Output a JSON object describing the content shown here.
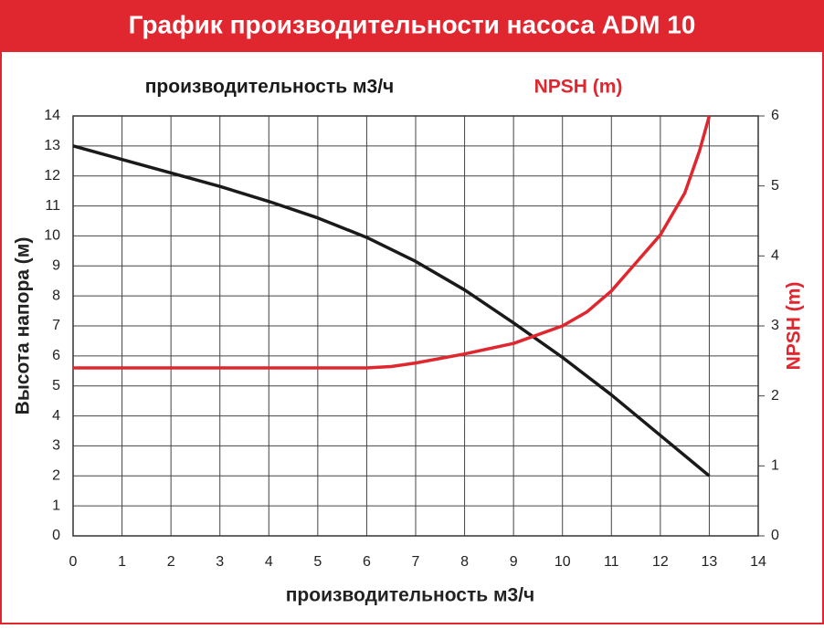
{
  "chart_data": {
    "type": "line",
    "title": "График производительности насоса ADM 10",
    "x_label": "производительность м3/ч",
    "y_label": "Высота напора (м)",
    "y2_label": "NPSH (m)",
    "xlim": [
      0,
      14
    ],
    "xticks": [
      0,
      1,
      2,
      3,
      4,
      5,
      6,
      7,
      8,
      9,
      10,
      11,
      12,
      13,
      14
    ],
    "ylim": [
      0,
      14
    ],
    "yticks": [
      0,
      1,
      2,
      3,
      4,
      5,
      6,
      7,
      8,
      9,
      10,
      11,
      12,
      13,
      14
    ],
    "y2lim": [
      0,
      6
    ],
    "y2ticks": [
      0,
      1,
      2,
      3,
      4,
      5,
      6
    ],
    "grid": true,
    "series": [
      {
        "name": "производительность м3/ч",
        "color": "#1a1a1a",
        "x": [
          0,
          1,
          2,
          3,
          4,
          5,
          6,
          7,
          8,
          9,
          10,
          11,
          12,
          13
        ],
        "values": [
          13,
          12.55,
          12.1,
          11.65,
          11.15,
          10.6,
          9.95,
          9.15,
          8.2,
          7.1,
          5.95,
          4.7,
          3.35,
          2
        ]
      },
      {
        "name": "NPSH (m)",
        "color": "#e0262e",
        "axis": "y2",
        "x": [
          0,
          1,
          2,
          3,
          4,
          5,
          6,
          6.5,
          7,
          8,
          9,
          10,
          10.5,
          11,
          11.5,
          12,
          12.5,
          12.8,
          13
        ],
        "values": [
          2.4,
          2.4,
          2.4,
          2.4,
          2.4,
          2.4,
          2.4,
          2.42,
          2.47,
          2.6,
          2.75,
          3.0,
          3.2,
          3.5,
          3.9,
          4.3,
          4.9,
          5.5,
          6.0
        ]
      }
    ]
  }
}
